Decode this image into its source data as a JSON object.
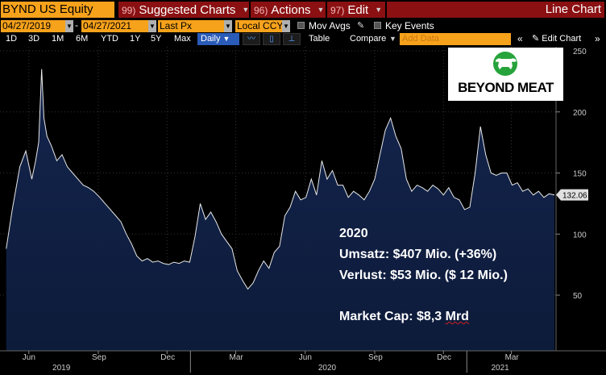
{
  "command_bar": {
    "ticker": "BYND US Equity",
    "menus": [
      {
        "num": "99)",
        "label": "Suggested Charts"
      },
      {
        "num": "96)",
        "label": "Actions"
      },
      {
        "num": "97)",
        "label": "Edit"
      }
    ],
    "view_title": "Line Chart"
  },
  "params": {
    "start_date": "04/27/2019",
    "end_date": "04/27/2021",
    "field": "Last Px",
    "currency": "Local CCY",
    "mov_avgs": "Mov Avgs",
    "key_events": "Key Events"
  },
  "toolbar": {
    "ranges": [
      "1D",
      "3D",
      "1M",
      "6M",
      "YTD",
      "1Y",
      "5Y",
      "Max"
    ],
    "period": "Daily",
    "table_label": "Table",
    "compare_label": "Compare",
    "add_data_placeholder": "Add Data",
    "edit_chart_label": "Edit Chart"
  },
  "logo": {
    "text": "BEYOND MEAT"
  },
  "annotation": {
    "year": "2020",
    "revenue": "Umsatz: $407 Mio. (+36%)",
    "loss": "Verlust: $53 Mio. ($ 12 Mio.)",
    "market_cap_prefix": "Market Cap: $8,3 ",
    "market_cap_unit": "Mrd"
  },
  "colors": {
    "accent_orange": "#f7a21b",
    "menu_red": "#8b1012",
    "area_fill": "#0d1b3a",
    "line": "#e8e8e8"
  },
  "chart_data": {
    "type": "area",
    "y_ticks": [
      50,
      100,
      150,
      200,
      250
    ],
    "ylim": [
      0,
      255
    ],
    "last_value_label": "132.06",
    "x_month_labels": [
      "Jun",
      "Sep",
      "Dec",
      "Mar",
      "Jun",
      "Sep",
      "Dec",
      "Mar"
    ],
    "x_month_dates": [
      "2019-06-01",
      "2019-09-01",
      "2019-12-01",
      "2020-03-01",
      "2020-06-01",
      "2020-09-01",
      "2020-12-01",
      "2021-03-01"
    ],
    "x_year_labels": [
      "2019",
      "2020",
      "2021"
    ],
    "x_year_dates": [
      "2019-07-15",
      "2020-07-01",
      "2021-02-15"
    ],
    "series": [
      {
        "x": [
          "2019-05-02",
          "2019-05-10",
          "2019-05-20",
          "2019-05-28",
          "2019-06-05",
          "2019-06-10",
          "2019-06-14",
          "2019-06-18",
          "2019-06-21",
          "2019-06-25",
          "2019-07-01",
          "2019-07-08",
          "2019-07-15",
          "2019-07-22",
          "2019-07-29",
          "2019-08-05",
          "2019-08-12",
          "2019-08-19",
          "2019-08-26",
          "2019-09-03",
          "2019-09-10",
          "2019-09-17",
          "2019-09-24",
          "2019-10-01",
          "2019-10-08",
          "2019-10-15",
          "2019-10-22",
          "2019-10-29",
          "2019-11-05",
          "2019-11-12",
          "2019-11-19",
          "2019-11-26",
          "2019-12-03",
          "2019-12-10",
          "2019-12-17",
          "2019-12-24",
          "2019-12-31",
          "2020-01-07",
          "2020-01-14",
          "2020-01-21",
          "2020-01-28",
          "2020-02-04",
          "2020-02-11",
          "2020-02-18",
          "2020-02-25",
          "2020-03-03",
          "2020-03-10",
          "2020-03-17",
          "2020-03-24",
          "2020-03-31",
          "2020-04-07",
          "2020-04-14",
          "2020-04-21",
          "2020-04-28",
          "2020-05-05",
          "2020-05-12",
          "2020-05-19",
          "2020-05-26",
          "2020-06-02",
          "2020-06-09",
          "2020-06-16",
          "2020-06-23",
          "2020-06-30",
          "2020-07-07",
          "2020-07-14",
          "2020-07-21",
          "2020-07-28",
          "2020-08-04",
          "2020-08-11",
          "2020-08-18",
          "2020-08-25",
          "2020-09-01",
          "2020-09-08",
          "2020-09-15",
          "2020-09-22",
          "2020-09-29",
          "2020-10-06",
          "2020-10-13",
          "2020-10-20",
          "2020-10-27",
          "2020-11-03",
          "2020-11-10",
          "2020-11-17",
          "2020-11-24",
          "2020-12-01",
          "2020-12-08",
          "2020-12-15",
          "2020-12-22",
          "2020-12-29",
          "2021-01-05",
          "2021-01-12",
          "2021-01-19",
          "2021-01-26",
          "2021-02-02",
          "2021-02-09",
          "2021-02-16",
          "2021-02-23",
          "2021-03-02",
          "2021-03-09",
          "2021-03-16",
          "2021-03-23",
          "2021-03-30",
          "2021-04-06",
          "2021-04-13",
          "2021-04-20",
          "2021-04-27"
        ],
        "values": [
          88,
          120,
          155,
          168,
          145,
          160,
          175,
          235,
          195,
          180,
          172,
          160,
          165,
          155,
          150,
          145,
          140,
          138,
          135,
          130,
          125,
          120,
          115,
          110,
          100,
          92,
          82,
          78,
          80,
          77,
          78,
          76,
          75,
          77,
          76,
          78,
          77,
          98,
          125,
          112,
          118,
          110,
          100,
          94,
          88,
          70,
          62,
          55,
          60,
          70,
          78,
          72,
          85,
          90,
          115,
          122,
          135,
          128,
          130,
          145,
          132,
          160,
          145,
          152,
          140,
          140,
          130,
          135,
          132,
          128,
          135,
          145,
          165,
          185,
          195,
          180,
          170,
          145,
          135,
          140,
          138,
          135,
          140,
          137,
          132,
          138,
          130,
          128,
          120,
          122,
          150,
          188,
          165,
          150,
          148,
          150,
          150,
          140,
          142,
          135,
          137,
          132,
          135,
          130,
          133,
          132
        ]
      }
    ]
  }
}
